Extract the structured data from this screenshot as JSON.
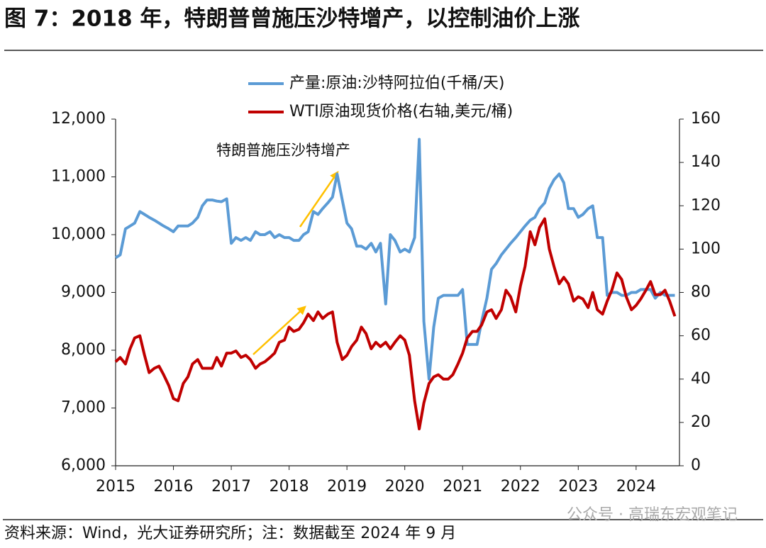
{
  "chart_data": {
    "type": "line",
    "title": "图 7：2018 年，特朗普曾施压沙特增产，以控制油价上涨",
    "source": "资料来源：Wind，光大证券研究所；注：数据截至 2024 年 9 月",
    "watermark": "公众号 · 高瑞东宏观笔记",
    "annotation": "特朗普施压沙特增产",
    "x": [
      2015.0,
      2015.08,
      2015.17,
      2015.25,
      2015.33,
      2015.42,
      2015.5,
      2015.58,
      2015.67,
      2015.75,
      2015.83,
      2015.92,
      2016.0,
      2016.08,
      2016.17,
      2016.25,
      2016.33,
      2016.42,
      2016.5,
      2016.58,
      2016.67,
      2016.75,
      2016.83,
      2016.92,
      2017.0,
      2017.08,
      2017.17,
      2017.25,
      2017.33,
      2017.42,
      2017.5,
      2017.58,
      2017.67,
      2017.75,
      2017.83,
      2017.92,
      2018.0,
      2018.08,
      2018.17,
      2018.25,
      2018.33,
      2018.42,
      2018.5,
      2018.58,
      2018.67,
      2018.75,
      2018.83,
      2018.92,
      2019.0,
      2019.08,
      2019.17,
      2019.25,
      2019.33,
      2019.42,
      2019.5,
      2019.58,
      2019.67,
      2019.75,
      2019.83,
      2019.92,
      2020.0,
      2020.08,
      2020.17,
      2020.25,
      2020.33,
      2020.42,
      2020.5,
      2020.58,
      2020.67,
      2020.75,
      2020.83,
      2020.92,
      2021.0,
      2021.08,
      2021.17,
      2021.25,
      2021.33,
      2021.42,
      2021.5,
      2021.58,
      2021.67,
      2021.75,
      2021.83,
      2021.92,
      2022.0,
      2022.08,
      2022.17,
      2022.25,
      2022.33,
      2022.42,
      2022.5,
      2022.58,
      2022.67,
      2022.75,
      2022.83,
      2022.92,
      2023.0,
      2023.08,
      2023.17,
      2023.25,
      2023.33,
      2023.42,
      2023.5,
      2023.58,
      2023.67,
      2023.75,
      2023.83,
      2023.92,
      2024.0,
      2024.08,
      2024.17,
      2024.25,
      2024.33,
      2024.42,
      2024.5,
      2024.58,
      2024.67
    ],
    "series": [
      {
        "name": "产量:原油:沙特阿拉伯(千桶/天)",
        "color": "#5b9bd5",
        "values": [
          9600,
          9650,
          10100,
          10150,
          10200,
          10400,
          10350,
          10300,
          10250,
          10200,
          10150,
          10100,
          10050,
          10150,
          10150,
          10150,
          10200,
          10300,
          10500,
          10600,
          10600,
          10580,
          10570,
          10620,
          9850,
          9950,
          9900,
          9950,
          9900,
          10050,
          10000,
          10000,
          10050,
          9950,
          10000,
          9950,
          9950,
          9900,
          9900,
          10000,
          10050,
          10400,
          10350,
          10450,
          10550,
          10650,
          11050,
          10600,
          10200,
          10100,
          9800,
          9800,
          9750,
          9850,
          9700,
          9850,
          8800,
          10000,
          9900,
          9700,
          9750,
          9700,
          9950,
          11650,
          8500,
          7500,
          8400,
          8900,
          8950,
          8950,
          8950,
          8950,
          9050,
          8100,
          8100,
          8100,
          8500,
          8900,
          9400,
          9500,
          9650,
          9750,
          9850,
          9950,
          10050,
          10150,
          10250,
          10300,
          10450,
          10550,
          10800,
          10950,
          11050,
          10900,
          10450,
          10450,
          10300,
          10350,
          10450,
          10500,
          9950,
          9950,
          8950,
          9000,
          9000,
          8950,
          8950,
          9000,
          9000,
          9050,
          9050,
          9050,
          8900,
          9000,
          8950,
          8950,
          8950
        ]
      },
      {
        "name": "WTI原油现货价格(右轴,美元/桶)",
        "color": "#c00000",
        "axis": "y2",
        "values": [
          48,
          50,
          47,
          54,
          59,
          60,
          51,
          43,
          45,
          46,
          42,
          37,
          31,
          30,
          38,
          41,
          47,
          49,
          45,
          45,
          45,
          50,
          46,
          52,
          52,
          53,
          50,
          51,
          49,
          45,
          47,
          48,
          50,
          52,
          57,
          58,
          64,
          62,
          63,
          66,
          70,
          67,
          71,
          68,
          70,
          71,
          57,
          49,
          51,
          55,
          58,
          64,
          61,
          54,
          57,
          55,
          57,
          54,
          57,
          60,
          58,
          51,
          30,
          17,
          29,
          38,
          41,
          42,
          40,
          40,
          42,
          47,
          52,
          59,
          62,
          62,
          65,
          71,
          72,
          68,
          72,
          81,
          78,
          71,
          83,
          92,
          108,
          102,
          110,
          114,
          100,
          92,
          84,
          87,
          84,
          76,
          78,
          77,
          73,
          80,
          72,
          70,
          76,
          81,
          89,
          86,
          78,
          72,
          74,
          77,
          81,
          85,
          79,
          79,
          81,
          76,
          69
        ]
      }
    ],
    "xlim": [
      2015,
      2024.75
    ],
    "xticks": [
      2015,
      2016,
      2017,
      2018,
      2019,
      2020,
      2021,
      2022,
      2023,
      2024
    ],
    "ylim": [
      6000,
      12000
    ],
    "yticks": [
      {
        "value": 6000,
        "label": "6,000"
      },
      {
        "value": 7000,
        "label": "7,000"
      },
      {
        "value": 8000,
        "label": "8,000"
      },
      {
        "value": 9000,
        "label": "9,000"
      },
      {
        "value": 10000,
        "label": "10,000"
      },
      {
        "value": 11000,
        "label": "11,000"
      },
      {
        "value": 12000,
        "label": "12,000"
      }
    ],
    "y2lim": [
      0,
      160
    ],
    "y2ticks": [
      0,
      20,
      40,
      60,
      80,
      100,
      120,
      140,
      160
    ],
    "legend": "top"
  }
}
